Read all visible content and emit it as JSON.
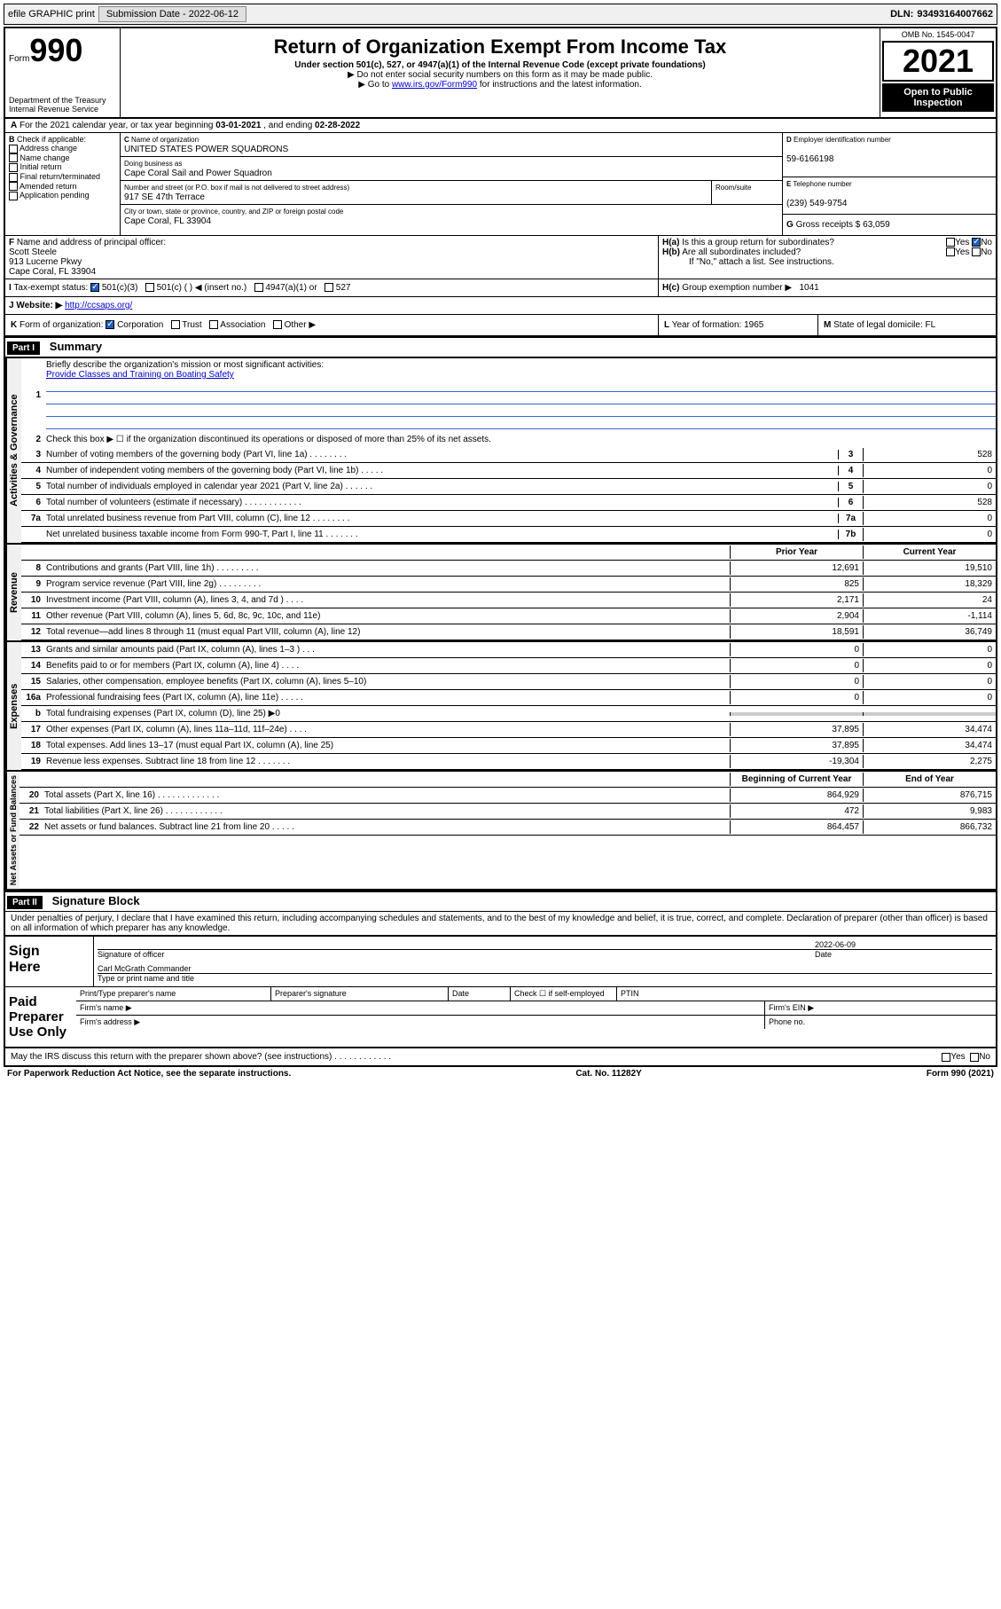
{
  "topbar": {
    "efile": "efile GRAPHIC print",
    "submission": "Submission Date - 2022-06-12",
    "dln_label": "DLN:",
    "dln": "93493164007662"
  },
  "header": {
    "form_word": "Form",
    "form_num": "990",
    "dept": "Department of the Treasury",
    "irs": "Internal Revenue Service",
    "title": "Return of Organization Exempt From Income Tax",
    "sub": "Under section 501(c), 527, or 4947(a)(1) of the Internal Revenue Code (except private foundations)",
    "note1": "▶ Do not enter social security numbers on this form as it may be made public.",
    "note2_pre": "▶ Go to ",
    "note2_link": "www.irs.gov/Form990",
    "note2_post": " for instructions and the latest information.",
    "omb": "OMB No. 1545-0047",
    "year": "2021",
    "inspection": "Open to Public Inspection"
  },
  "a": {
    "text": "For the 2021 calendar year, or tax year beginning ",
    "begin": "03-01-2021",
    "mid": " , and ending ",
    "end": "02-28-2022"
  },
  "b": {
    "label": "Check if applicable:",
    "opts": [
      "Address change",
      "Name change",
      "Initial return",
      "Final return/terminated",
      "Amended return",
      "Application pending"
    ]
  },
  "c": {
    "name_label": "Name of organization",
    "name": "UNITED STATES POWER SQUADRONS",
    "dba_label": "Doing business as",
    "dba": "Cape Coral Sail and Power Squadron",
    "street_label": "Number and street (or P.O. box if mail is not delivered to street address)",
    "street": "917 SE 47th Terrace",
    "room_label": "Room/suite",
    "city_label": "City or town, state or province, country, and ZIP or foreign postal code",
    "city": "Cape Coral, FL  33904"
  },
  "d": {
    "label": "Employer identification number",
    "val": "59-6166198"
  },
  "e": {
    "label": "Telephone number",
    "val": "(239) 549-9754"
  },
  "g": {
    "label": "Gross receipts $",
    "val": "63,059"
  },
  "f": {
    "label": "Name and address of principal officer:",
    "name": "Scott Steele",
    "street": "913 Lucerne Pkwy",
    "city": "Cape Coral, FL  33904"
  },
  "h": {
    "a": "Is this a group return for subordinates?",
    "b": "Are all subordinates included?",
    "note": "If \"No,\" attach a list. See instructions.",
    "c": "Group exemption number ▶",
    "c_val": "1041"
  },
  "i": {
    "label": "Tax-exempt status:",
    "opt1": "501(c)(3)",
    "opt2": "501(c) (   ) ◀ (insert no.)",
    "opt3": "4947(a)(1) or",
    "opt4": "527"
  },
  "j": {
    "label": "Website: ▶",
    "val": "http://ccsaps.org/"
  },
  "k": {
    "label": "Form of organization:",
    "opts": [
      "Corporation",
      "Trust",
      "Association",
      "Other ▶"
    ]
  },
  "l": {
    "label": "Year of formation:",
    "val": "1965"
  },
  "m": {
    "label": "State of legal domicile:",
    "val": "FL"
  },
  "part1": {
    "header": "Part I",
    "title": "Summary",
    "q1": "Briefly describe the organization's mission or most significant activities:",
    "mission": "Provide Classes and Training on Boating Safety",
    "q2": "Check this box ▶ ☐  if the organization discontinued its operations or disposed of more than 25% of its net assets.",
    "labels": {
      "governance": "Activities & Governance",
      "revenue": "Revenue",
      "expenses": "Expenses",
      "netassets": "Net Assets or Fund Balances"
    },
    "lines_gov": [
      {
        "n": "3",
        "t": "Number of voting members of the governing body (Part VI, line 1a)   .   .   .   .   .   .   .   .",
        "k": "3",
        "v": "528"
      },
      {
        "n": "4",
        "t": "Number of independent voting members of the governing body (Part VI, line 1b)   .   .   .   .   .",
        "k": "4",
        "v": "0"
      },
      {
        "n": "5",
        "t": "Total number of individuals employed in calendar year 2021 (Part V, line 2a)   .   .   .   .   .   .",
        "k": "5",
        "v": "0"
      },
      {
        "n": "6",
        "t": "Total number of volunteers (estimate if necessary)   .   .   .   .   .   .   .   .   .   .   .   .",
        "k": "6",
        "v": "528"
      },
      {
        "n": "7a",
        "t": "Total unrelated business revenue from Part VIII, column (C), line 12   .   .   .   .   .   .   .   .",
        "k": "7a",
        "v": "0"
      },
      {
        "n": "",
        "t": "Net unrelated business taxable income from Form 990-T, Part I, line 11   .   .   .   .   .   .   .",
        "k": "7b",
        "v": "0"
      }
    ],
    "col_headers": {
      "prior": "Prior Year",
      "curr": "Current Year",
      "begin": "Beginning of Current Year",
      "end": "End of Year"
    },
    "lines_rev": [
      {
        "n": "8",
        "t": "Contributions and grants (Part VIII, line 1h)   .   .   .   .   .   .   .   .   .",
        "p": "12,691",
        "c": "19,510"
      },
      {
        "n": "9",
        "t": "Program service revenue (Part VIII, line 2g)   .   .   .   .   .   .   .   .   .",
        "p": "825",
        "c": "18,329"
      },
      {
        "n": "10",
        "t": "Investment income (Part VIII, column (A), lines 3, 4, and 7d )    .   .   .   .",
        "p": "2,171",
        "c": "24"
      },
      {
        "n": "11",
        "t": "Other revenue (Part VIII, column (A), lines 5, 6d, 8c, 9c, 10c, and 11e)",
        "p": "2,904",
        "c": "-1,114"
      },
      {
        "n": "12",
        "t": "Total revenue—add lines 8 through 11 (must equal Part VIII, column (A), line 12)",
        "p": "18,591",
        "c": "36,749"
      }
    ],
    "lines_exp": [
      {
        "n": "13",
        "t": "Grants and similar amounts paid (Part IX, column (A), lines 1–3 )   .   .   .",
        "p": "0",
        "c": "0"
      },
      {
        "n": "14",
        "t": "Benefits paid to or for members (Part IX, column (A), line 4)   .   .   .   .",
        "p": "0",
        "c": "0"
      },
      {
        "n": "15",
        "t": "Salaries, other compensation, employee benefits (Part IX, column (A), lines 5–10)",
        "p": "0",
        "c": "0"
      },
      {
        "n": "16a",
        "t": "Professional fundraising fees (Part IX, column (A), line 11e)   .   .   .   .   .",
        "p": "0",
        "c": "0"
      },
      {
        "n": "b",
        "t": "Total fundraising expenses (Part IX, column (D), line 25) ▶0",
        "p": "",
        "c": "",
        "grey": true
      },
      {
        "n": "17",
        "t": "Other expenses (Part IX, column (A), lines 11a–11d, 11f–24e)   .   .   .   .",
        "p": "37,895",
        "c": "34,474"
      },
      {
        "n": "18",
        "t": "Total expenses. Add lines 13–17 (must equal Part IX, column (A), line 25)",
        "p": "37,895",
        "c": "34,474"
      },
      {
        "n": "19",
        "t": "Revenue less expenses. Subtract line 18 from line 12   .   .   .   .   .   .   .",
        "p": "-19,304",
        "c": "2,275"
      }
    ],
    "lines_net": [
      {
        "n": "20",
        "t": "Total assets (Part X, line 16)   .   .   .   .   .   .   .   .   .   .   .   .   .",
        "p": "864,929",
        "c": "876,715"
      },
      {
        "n": "21",
        "t": "Total liabilities (Part X, line 26)   .   .   .   .   .   .   .   .   .   .   .   .",
        "p": "472",
        "c": "9,983"
      },
      {
        "n": "22",
        "t": "Net assets or fund balances. Subtract line 21 from line 20   .   .   .   .   .",
        "p": "864,457",
        "c": "866,732"
      }
    ]
  },
  "part2": {
    "header": "Part II",
    "title": "Signature Block",
    "decl": "Under penalties of perjury, I declare that I have examined this return, including accompanying schedules and statements, and to the best of my knowledge and belief, it is true, correct, and complete. Declaration of preparer (other than officer) is based on all information of which preparer has any knowledge.",
    "sign_here": "Sign Here",
    "sig_officer": "Signature of officer",
    "date_label": "Date",
    "date": "2022-06-09",
    "officer_name": "Carl McGrath Commander",
    "type_name": "Type or print name and title",
    "paid_prep": "Paid Preparer Use Only",
    "prep_name": "Print/Type preparer's name",
    "prep_sig": "Preparer's signature",
    "prep_date": "Date",
    "check_if": "Check ☐ if self-employed",
    "ptin": "PTIN",
    "firm_name": "Firm's name    ▶",
    "firm_ein": "Firm's EIN ▶",
    "firm_addr": "Firm's address ▶",
    "phone": "Phone no.",
    "may_irs": "May the IRS discuss this return with the preparer shown above? (see instructions)   .   .   .   .   .   .   .   .   .   .   .   .",
    "yes": "Yes",
    "no": "No"
  },
  "footer": {
    "paperwork": "For Paperwork Reduction Act Notice, see the separate instructions.",
    "cat": "Cat. No. 11282Y",
    "form": "Form 990 (2021)"
  }
}
